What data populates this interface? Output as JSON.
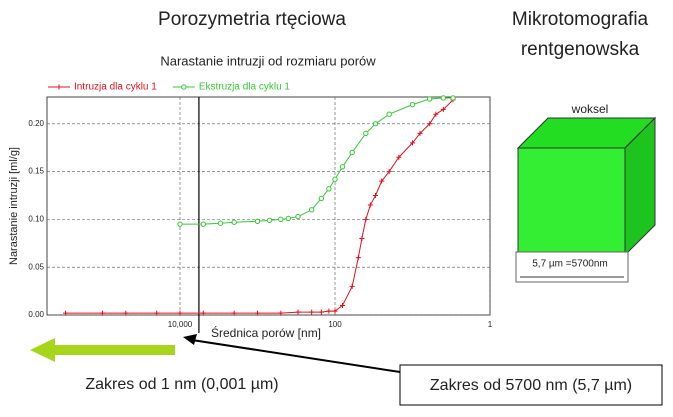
{
  "heading_left": "Porozymetria rtęciowa",
  "heading_right": [
    "Mikrotomografia",
    "rentgenowska"
  ],
  "voxel_label": "woksel",
  "voxel_size": "5,7 µm =5700nm",
  "range_left": "Zakres od 1 nm (0,001 µm)",
  "range_right": "Zakres od 5700 nm (5,7 µm)",
  "chart_data": {
    "type": "line",
    "title": "Narastanie intruzji od rozmiaru porów",
    "x_label": "Średnica porów [nm]",
    "y_label": "Narastanie intruzji [ml/g]",
    "xlim": [
      520000,
      1
    ],
    "x_log": true,
    "xticks": [
      {
        "value": 10000,
        "label": "10,000"
      },
      100,
      1
    ],
    "ylim": [
      0,
      0.228
    ],
    "yticks": [
      {
        "value": 0,
        "label": "0.00"
      },
      {
        "value": 0.05,
        "label": "0.05"
      },
      {
        "value": 0.1,
        "label": "0.10"
      },
      {
        "value": 0.15,
        "label": "0.15"
      },
      {
        "value": 0.2,
        "label": "0.20"
      }
    ],
    "grid": true,
    "marker_x": 5700,
    "series": [
      {
        "name": "Intruzja dla cyklu 1",
        "color": "#e8101a",
        "marker": "plus",
        "x": [
          300000,
          100000,
          50000,
          20000,
          10000,
          5000,
          2000,
          1000,
          500,
          300,
          200,
          150,
          120,
          100,
          80,
          60,
          50,
          45,
          40,
          35,
          30,
          25,
          20,
          15,
          10,
          8,
          6,
          5,
          4,
          3
        ],
        "values": [
          0.002,
          0.002,
          0.002,
          0.002,
          0.002,
          0.002,
          0.002,
          0.002,
          0.002,
          0.003,
          0.003,
          0.003,
          0.004,
          0.004,
          0.01,
          0.03,
          0.06,
          0.08,
          0.1,
          0.115,
          0.125,
          0.14,
          0.15,
          0.165,
          0.18,
          0.19,
          0.2,
          0.21,
          0.215,
          0.225
        ]
      },
      {
        "name": "Ekstruzja dla cyklu 1",
        "color": "#33cc33",
        "marker": "circle",
        "x": [
          10000,
          5000,
          3000,
          2000,
          1000,
          700,
          500,
          400,
          300,
          200,
          150,
          120,
          100,
          80,
          60,
          40,
          30,
          20,
          10,
          6,
          4,
          3
        ],
        "values": [
          0.095,
          0.095,
          0.096,
          0.097,
          0.098,
          0.099,
          0.1,
          0.101,
          0.103,
          0.11,
          0.122,
          0.132,
          0.142,
          0.155,
          0.17,
          0.19,
          0.2,
          0.21,
          0.22,
          0.226,
          0.227,
          0.227
        ]
      }
    ]
  }
}
